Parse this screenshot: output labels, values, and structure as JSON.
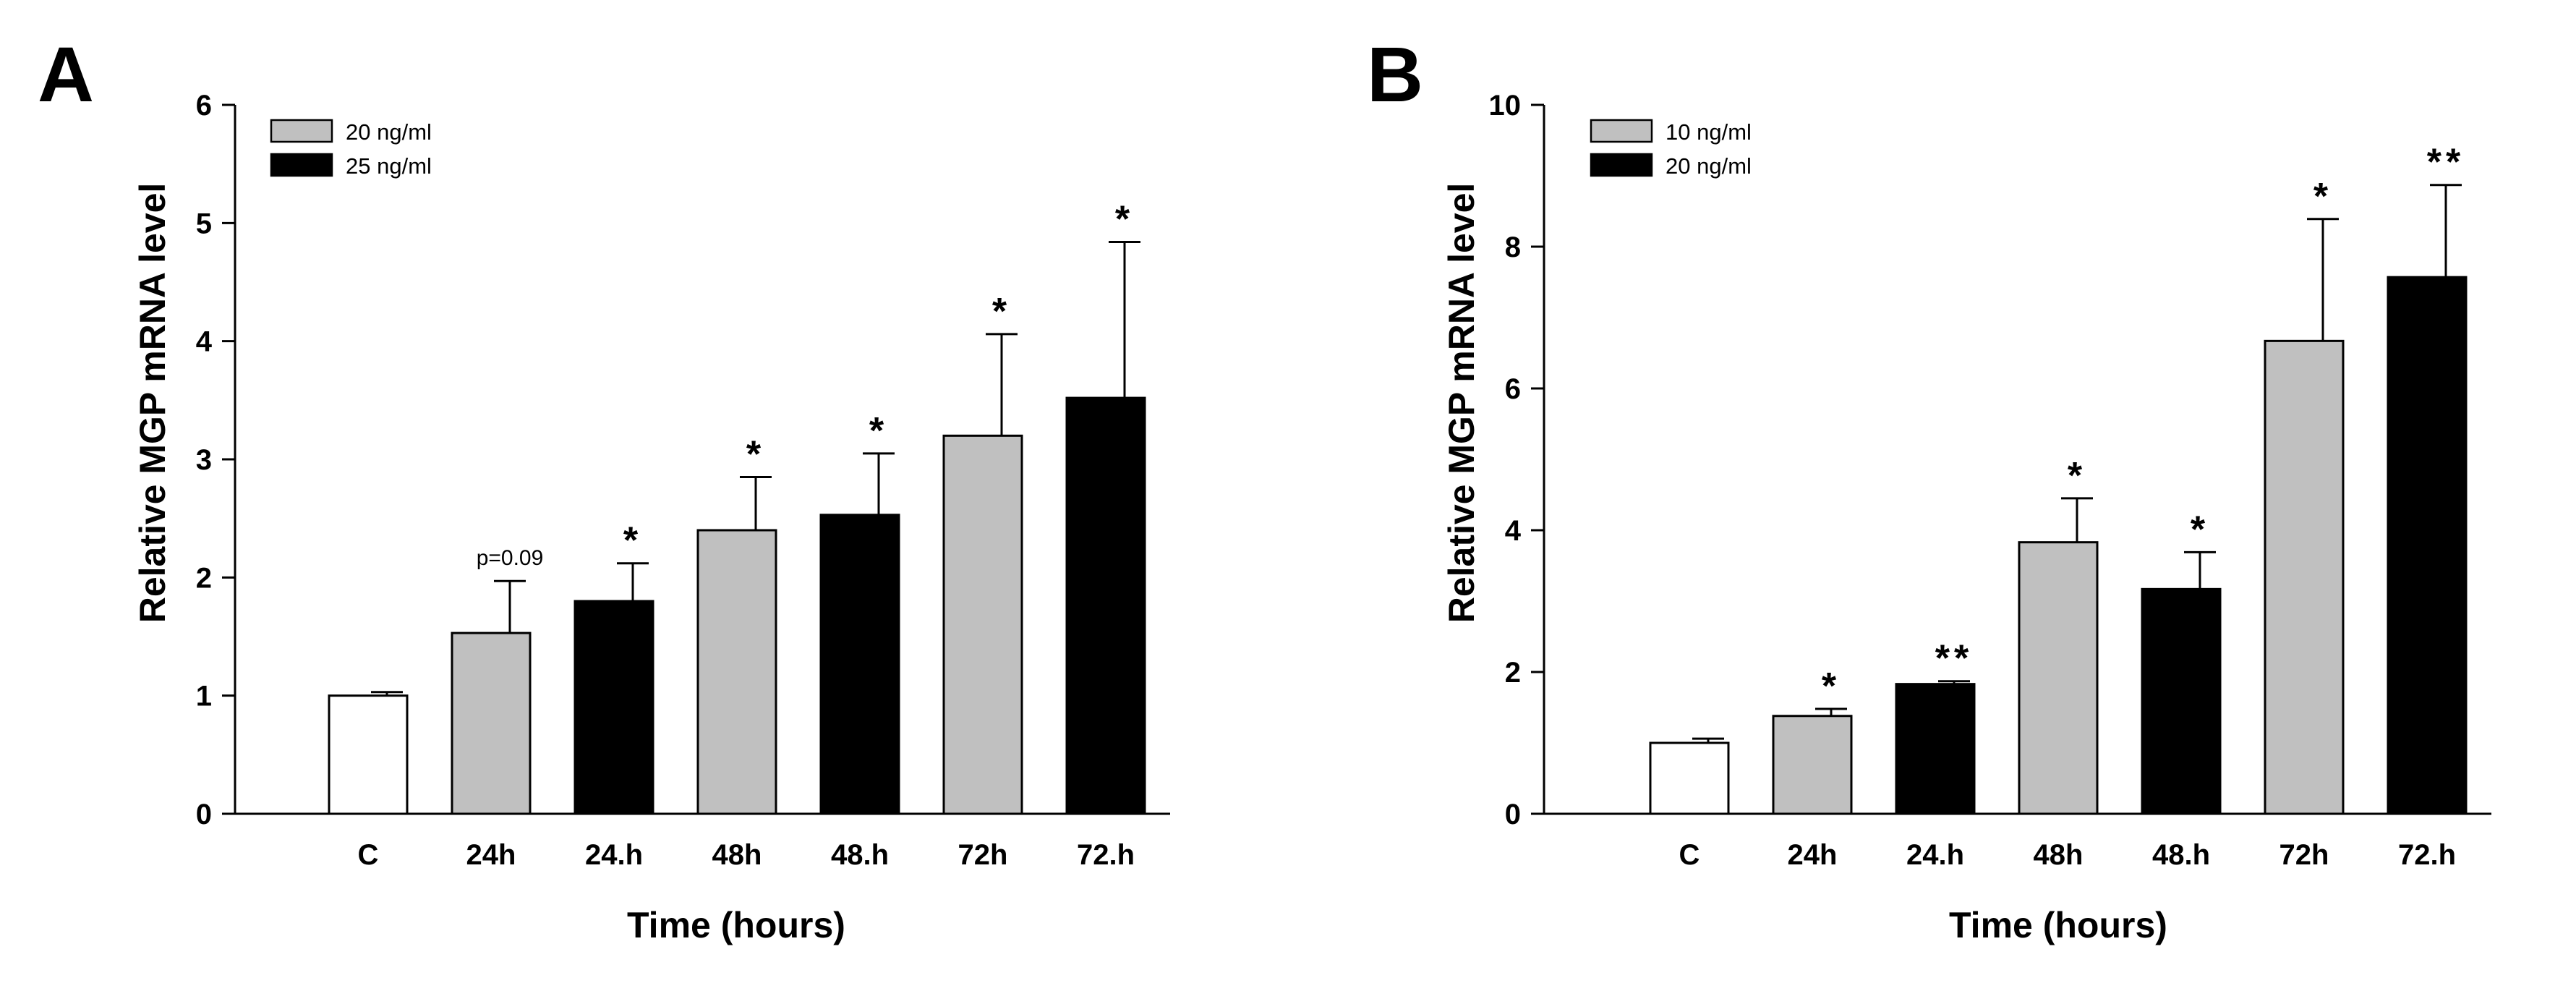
{
  "chart_data": [
    {
      "type": "bar",
      "panel_label": "A",
      "ylabel": "Relative MGP mRNA level",
      "xlabel": "Time (hours)",
      "ylim": [
        0,
        6
      ],
      "yticks": [
        0,
        1,
        2,
        3,
        4,
        5,
        6
      ],
      "legend": {
        "placement": "top-left",
        "entries": [
          {
            "label": "20 ng/ml",
            "color": "#c0c0c0"
          },
          {
            "label": "25 ng/ml",
            "color": "#000000"
          }
        ]
      },
      "bars": [
        {
          "category": "C",
          "value": 1.0,
          "error": 0.03,
          "color": "#ffffff",
          "annotation": ""
        },
        {
          "category": "24h",
          "value": 1.53,
          "error": 0.44,
          "color": "#c0c0c0",
          "annotation": "p=0.09"
        },
        {
          "category": "24.h",
          "value": 1.8,
          "error": 0.32,
          "color": "#000000",
          "annotation": "*"
        },
        {
          "category": "48h",
          "value": 2.4,
          "error": 0.45,
          "color": "#c0c0c0",
          "annotation": "*"
        },
        {
          "category": "48.h",
          "value": 2.53,
          "error": 0.52,
          "color": "#000000",
          "annotation": "*"
        },
        {
          "category": "72h",
          "value": 3.2,
          "error": 0.86,
          "color": "#c0c0c0",
          "annotation": "*"
        },
        {
          "category": "72.h",
          "value": 3.52,
          "error": 1.32,
          "color": "#000000",
          "annotation": "*"
        }
      ]
    },
    {
      "type": "bar",
      "panel_label": "B",
      "ylabel": "Relative MGP mRNA level",
      "xlabel": "Time (hours)",
      "ylim": [
        0,
        10
      ],
      "yticks": [
        0,
        2,
        4,
        6,
        8,
        10
      ],
      "legend": {
        "placement": "top-left",
        "entries": [
          {
            "label": "10 ng/ml",
            "color": "#c0c0c0"
          },
          {
            "label": "20 ng/ml",
            "color": "#000000"
          }
        ]
      },
      "bars": [
        {
          "category": "C",
          "value": 1.0,
          "error": 0.06,
          "color": "#ffffff",
          "annotation": ""
        },
        {
          "category": "24h",
          "value": 1.38,
          "error": 0.1,
          "color": "#c0c0c0",
          "annotation": "*"
        },
        {
          "category": "24.h",
          "value": 1.83,
          "error": 0.04,
          "color": "#000000",
          "annotation": "**"
        },
        {
          "category": "48h",
          "value": 3.83,
          "error": 0.62,
          "color": "#c0c0c0",
          "annotation": "*"
        },
        {
          "category": "48.h",
          "value": 3.17,
          "error": 0.52,
          "color": "#000000",
          "annotation": "*"
        },
        {
          "category": "72h",
          "value": 6.67,
          "error": 1.72,
          "color": "#c0c0c0",
          "annotation": "*"
        },
        {
          "category": "72.h",
          "value": 7.57,
          "error": 1.3,
          "color": "#000000",
          "annotation": "**"
        }
      ]
    }
  ]
}
